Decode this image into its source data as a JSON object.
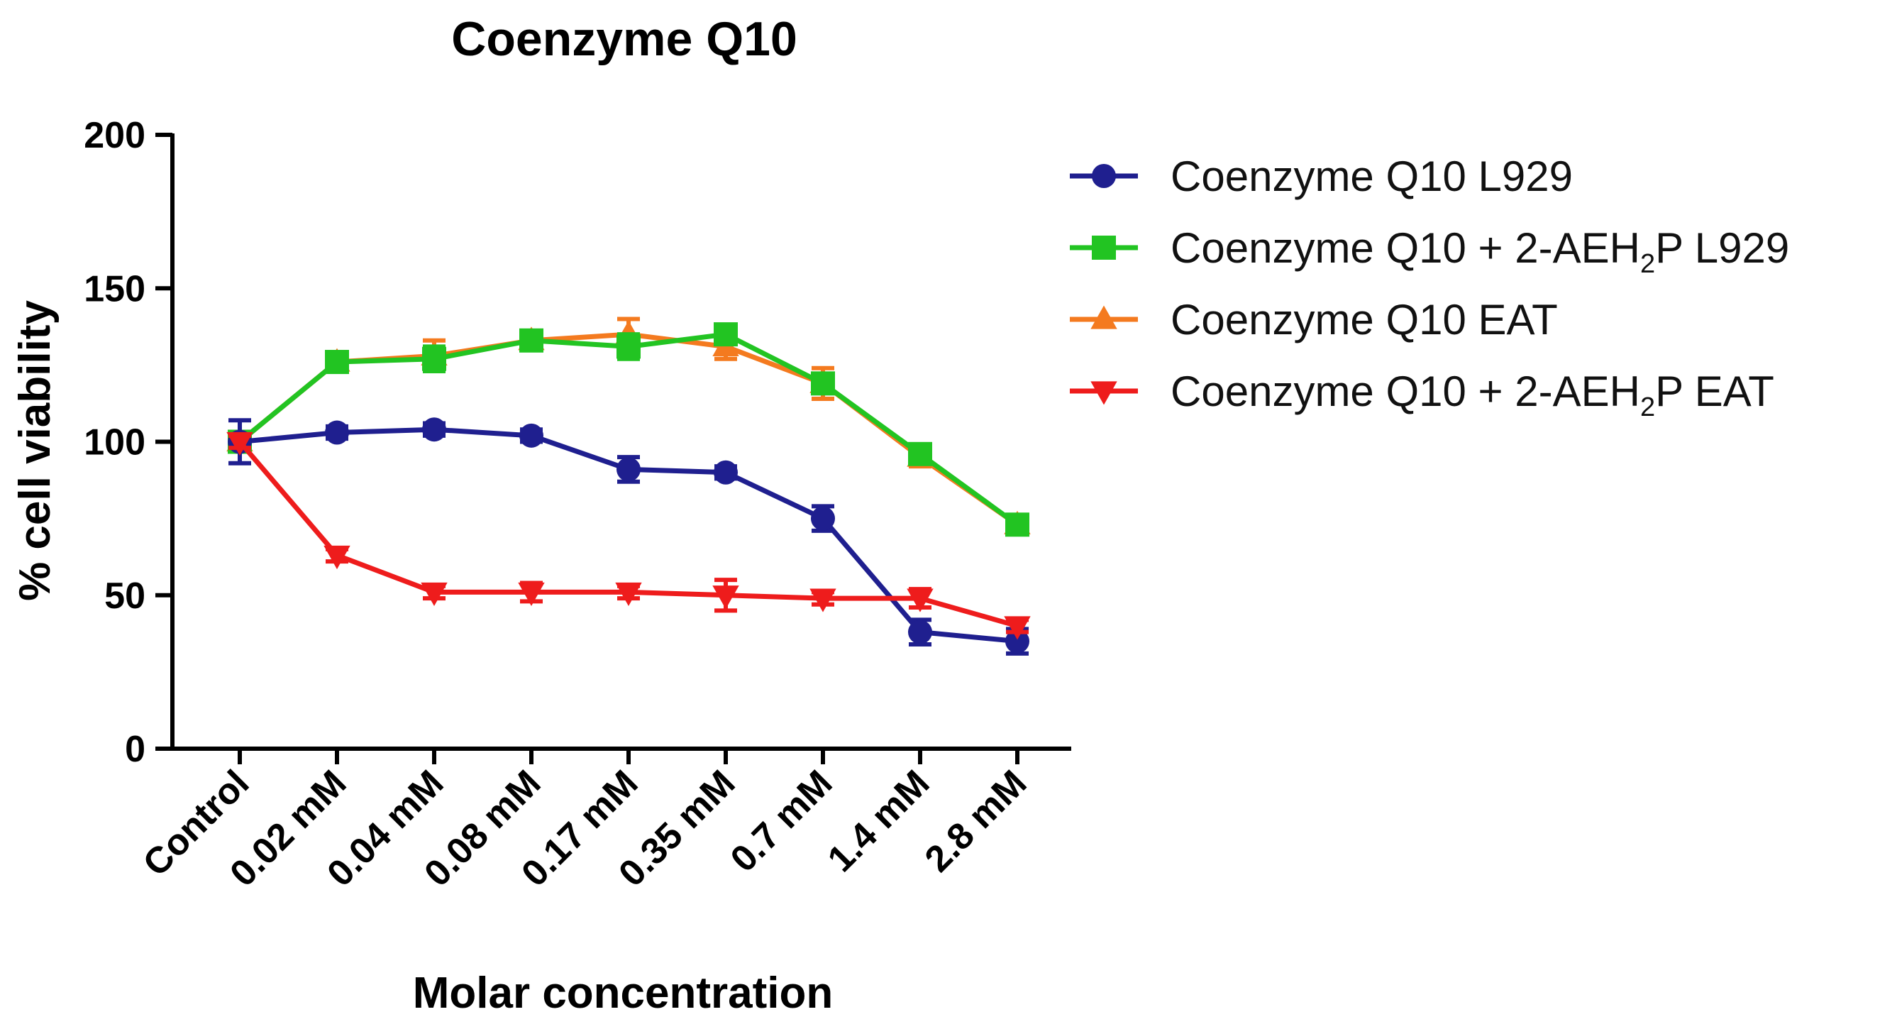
{
  "chart_data": {
    "type": "line",
    "title": "Coenzyme Q10",
    "xlabel": "Molar concentration",
    "ylabel": "% cell viability",
    "ylim": [
      0,
      200
    ],
    "yticks": [
      0,
      50,
      100,
      150,
      200
    ],
    "categories": [
      "Control",
      "0.02 mM",
      "0.04 mM",
      "0.08 mM",
      "0.17 mM",
      "0.35 mM",
      "0.7 mM",
      "1.4 mM",
      "2.8 mM"
    ],
    "legend_position": "right",
    "series": [
      {
        "name": "Coenzyme Q10 L929",
        "legend_main": "Coenzyme Q10 L929",
        "legend_sub": "",
        "legend_tail": "",
        "color": "#1f1f8f",
        "marker": "circle",
        "values": [
          100,
          103,
          104,
          102,
          91,
          90,
          75,
          38,
          35
        ],
        "errors": [
          7,
          2,
          2,
          2,
          4,
          2,
          4,
          4,
          4
        ]
      },
      {
        "name": "Coenzyme Q10 + 2-AEH2P L929",
        "legend_main": "Coenzyme Q10 + 2-AEH",
        "legend_sub": "2",
        "legend_tail": "P L929",
        "color": "#22c422",
        "marker": "square",
        "values": [
          100,
          126,
          127,
          133,
          131,
          135,
          119,
          96,
          73
        ],
        "errors": [
          3,
          2,
          4,
          2,
          4,
          3,
          3,
          2,
          2
        ]
      },
      {
        "name": "Coenzyme Q10 EAT",
        "legend_main": "Coenzyme Q10 EAT",
        "legend_sub": "",
        "legend_tail": "",
        "color": "#f47a1f",
        "marker": "triangle-up",
        "values": [
          100,
          126,
          128,
          133,
          135,
          131,
          119,
          95,
          73
        ],
        "errors": [
          3,
          2,
          5,
          2,
          5,
          4,
          5,
          3,
          2
        ]
      },
      {
        "name": "Coenzyme Q10 + 2-AEH2P EAT",
        "legend_main": "Coenzyme Q10 + 2-AEH",
        "legend_sub": "2",
        "legend_tail": "P EAT",
        "color": "#ee1c1c",
        "marker": "triangle-down",
        "values": [
          100,
          63,
          51,
          51,
          51,
          50,
          49,
          49,
          40
        ],
        "errors": [
          2,
          2,
          2,
          3,
          2,
          5,
          2,
          3,
          2
        ]
      }
    ]
  }
}
